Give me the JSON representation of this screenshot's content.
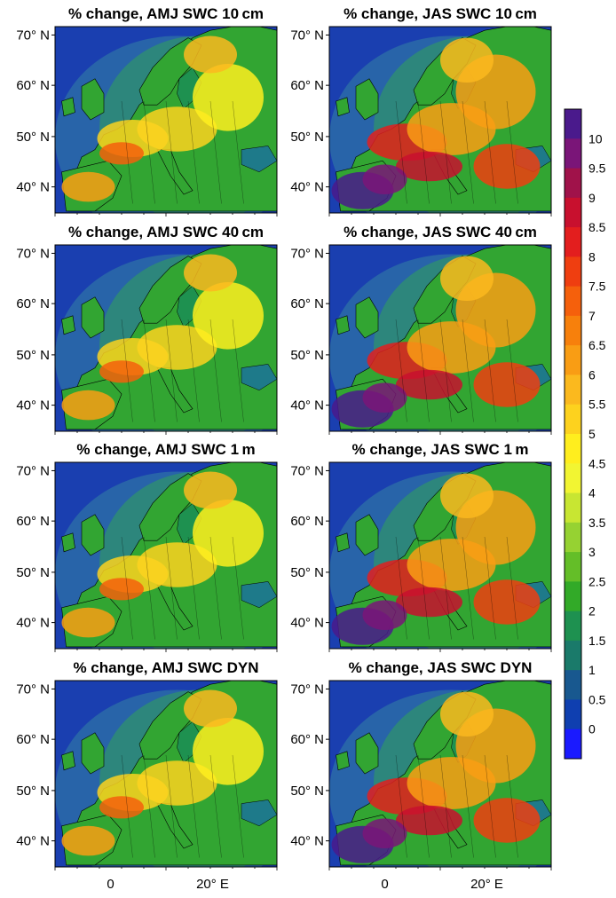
{
  "panels": [
    {
      "title": "% change, AMJ SWC 10 cm",
      "season": "AMJ",
      "depth": "10cm"
    },
    {
      "title": "% change, JAS SWC 10 cm",
      "season": "JAS",
      "depth": "10cm"
    },
    {
      "title": "% change, AMJ SWC 40 cm",
      "season": "AMJ",
      "depth": "40cm"
    },
    {
      "title": "% change, JAS SWC 40 cm",
      "season": "JAS",
      "depth": "40cm"
    },
    {
      "title": "% change, AMJ SWC 1 m",
      "season": "AMJ",
      "depth": "1m"
    },
    {
      "title": "% change, JAS SWC 1 m",
      "season": "JAS",
      "depth": "1m"
    },
    {
      "title": "% change, AMJ SWC DYN",
      "season": "AMJ",
      "depth": "DYN"
    },
    {
      "title": "% change, JAS SWC DYN",
      "season": "JAS",
      "depth": "DYN"
    }
  ],
  "axes": {
    "lat_ticks": [
      "70° N",
      "60° N",
      "50° N",
      "40° N"
    ],
    "lon_ticks": [
      "0",
      "20° E"
    ]
  },
  "colorbar": {
    "labels": [
      "10",
      "9.5",
      "9",
      "8.5",
      "8",
      "7.5",
      "7",
      "6.5",
      "6",
      "5.5",
      "5",
      "4.5",
      "4",
      "3.5",
      "3",
      "2.5",
      "2",
      "1.5",
      "1",
      "0.5",
      "0"
    ],
    "colors_top_to_bottom": [
      "#4a1a8c",
      "#7a1578",
      "#a0124a",
      "#c8102e",
      "#e31e1e",
      "#ef3e10",
      "#f5600c",
      "#f7800c",
      "#f99d14",
      "#fbb91e",
      "#fdd21e",
      "#ffee1e",
      "#f2f532",
      "#c8e632",
      "#96d232",
      "#64be28",
      "#32aa28",
      "#1e9150",
      "#1a7a6a",
      "#18588f",
      "#0f3fb0",
      "#1a1aff"
    ]
  },
  "map_colors": {
    "ocean_deep": "#1a3fb0",
    "ocean_shelf": "#2a68a8",
    "coast_shelf": "#2e8c74",
    "land_green": "#32a532"
  }
}
